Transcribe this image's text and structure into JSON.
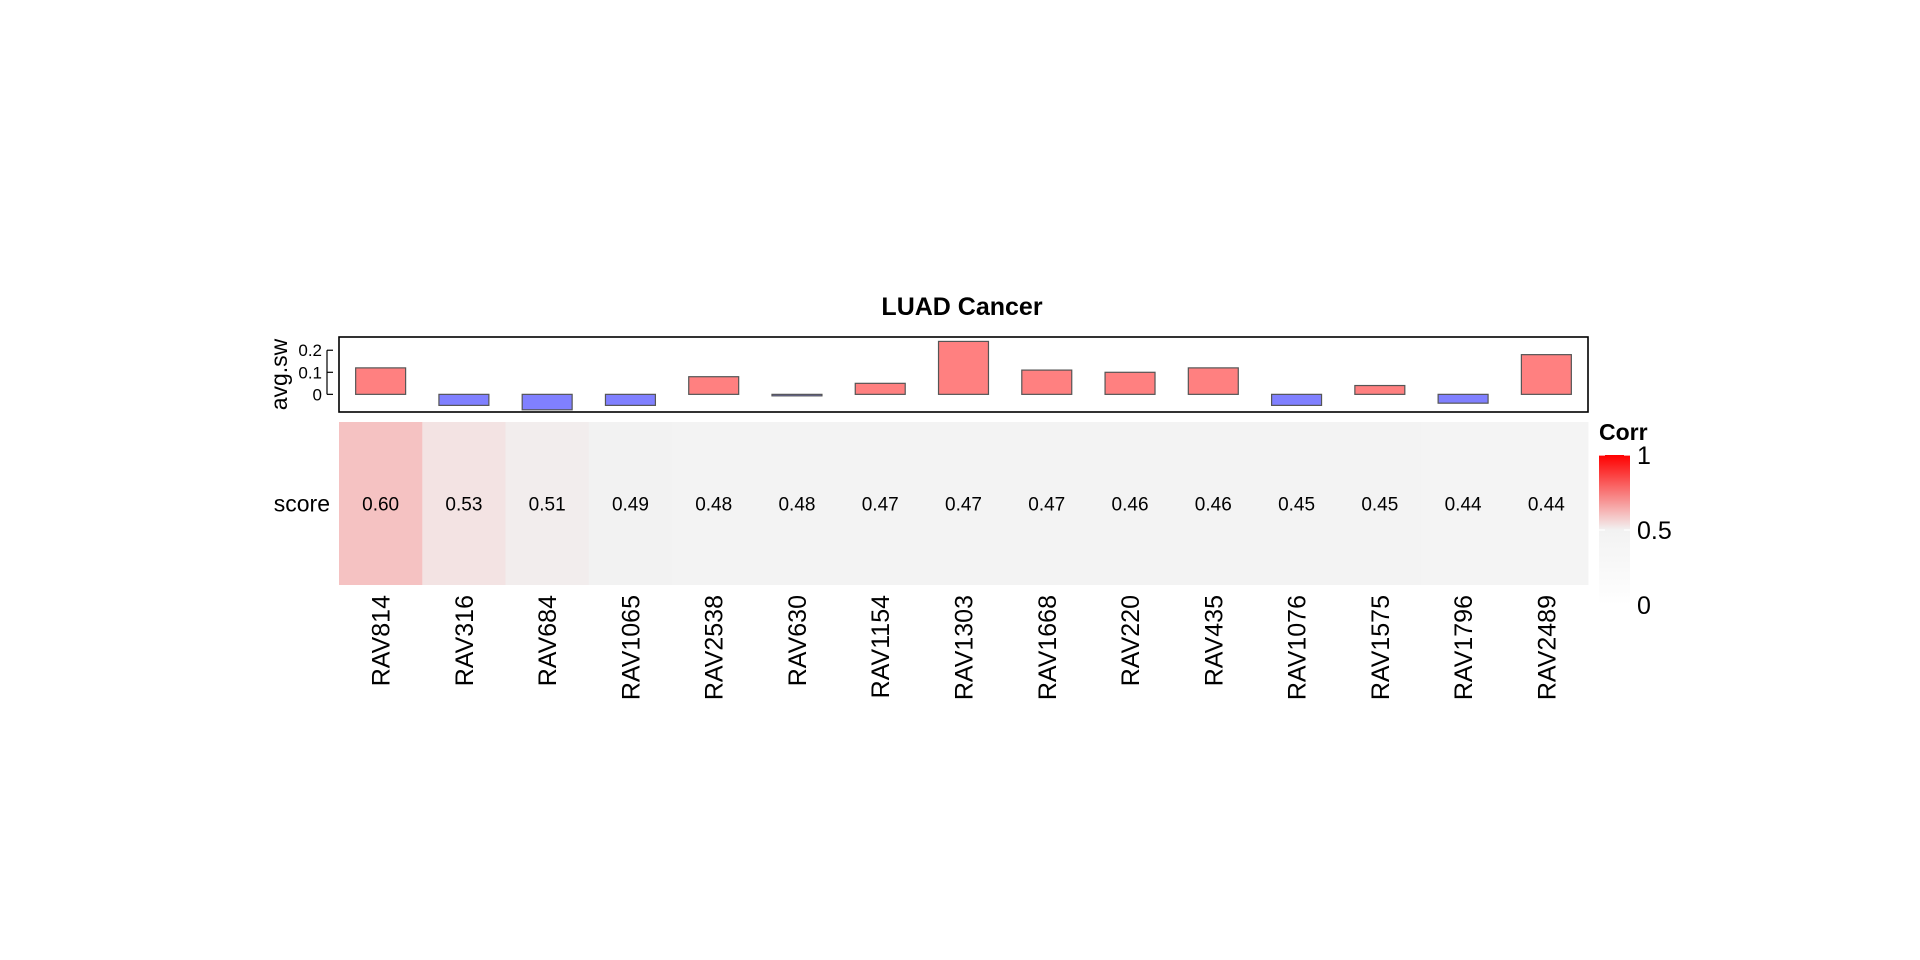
{
  "chart_data": {
    "type": "heatmap",
    "title": "LUAD Cancer",
    "row_label": "score",
    "categories": [
      "RAV814",
      "RAV316",
      "RAV684",
      "RAV1065",
      "RAV2538",
      "RAV630",
      "RAV1154",
      "RAV1303",
      "RAV1668",
      "RAV220",
      "RAV435",
      "RAV1076",
      "RAV1575",
      "RAV1796",
      "RAV2489"
    ],
    "scores": [
      0.6,
      0.53,
      0.51,
      0.49,
      0.48,
      0.48,
      0.47,
      0.47,
      0.47,
      0.46,
      0.46,
      0.45,
      0.45,
      0.44,
      0.44
    ],
    "score_labels": [
      "0.60",
      "0.53",
      "0.51",
      "0.49",
      "0.48",
      "0.48",
      "0.47",
      "0.47",
      "0.47",
      "0.46",
      "0.46",
      "0.45",
      "0.45",
      "0.44",
      "0.44"
    ],
    "annotation": {
      "name": "avg.sw",
      "type": "bar",
      "values": [
        0.12,
        -0.05,
        -0.07,
        -0.05,
        0.08,
        -0.005,
        0.05,
        0.24,
        0.11,
        0.1,
        0.12,
        -0.05,
        0.04,
        -0.04,
        0.18
      ],
      "ylim": [
        -0.08,
        0.26
      ],
      "ticks": [
        0,
        0.1,
        0.2
      ],
      "tick_labels": [
        "0",
        "0.1",
        "0.2"
      ],
      "positive_color": "#FF8080",
      "negative_color": "#8080FF"
    },
    "legend": {
      "title": "Corr",
      "placement": "right",
      "ticks": [
        0,
        0.5,
        1
      ],
      "tick_labels": [
        "0",
        "0.5",
        "1"
      ],
      "colors": {
        "low": "#FFFFFF",
        "mid": "#F2F2F2",
        "high": "#FF0000"
      }
    }
  }
}
